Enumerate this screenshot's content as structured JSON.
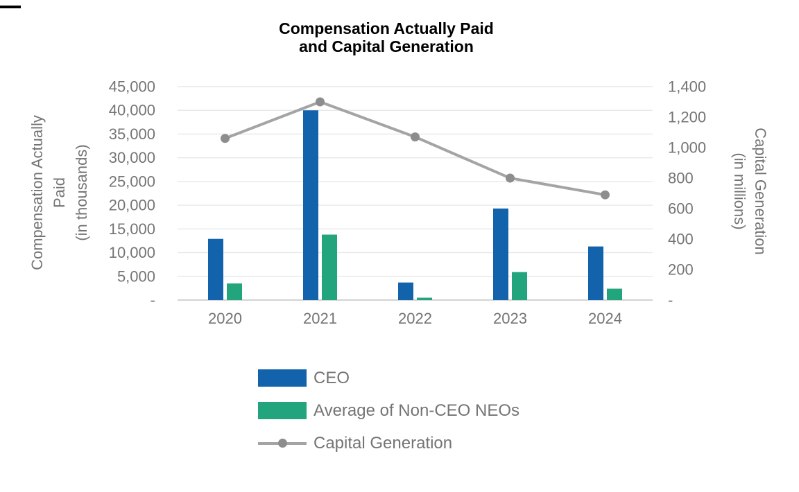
{
  "title": {
    "line1": "Compensation Actually Paid",
    "line2": "and Capital Generation"
  },
  "chart_data": {
    "type": "combo",
    "title": "Compensation Actually Paid and Capital Generation",
    "categories": [
      "2020",
      "2021",
      "2022",
      "2023",
      "2024"
    ],
    "series": [
      {
        "name": "CEO",
        "type": "bar",
        "axis": "left",
        "color": "#1262AC",
        "values": [
          12900,
          40000,
          3700,
          19300,
          11300
        ]
      },
      {
        "name": "Average of Non-CEO NEOs",
        "type": "bar",
        "axis": "left",
        "color": "#22A47D",
        "values": [
          3500,
          13800,
          500,
          5900,
          2400
        ]
      },
      {
        "name": "Capital Generation",
        "type": "line",
        "axis": "right",
        "color": "#A4A4A4",
        "marker_color": "#8D8D8D",
        "values": [
          1060,
          1300,
          1070,
          800,
          690
        ]
      }
    ],
    "left_axis": {
      "title_lines": [
        "Compensation Actually",
        "Paid",
        "(in thousands)"
      ],
      "min": 0,
      "max": 45000,
      "step": 5000,
      "tick_labels": [
        "45,000",
        "40,000",
        "35,000",
        "30,000",
        "25,000",
        "20,000",
        "15,000",
        "10,000",
        "5,000",
        "-"
      ]
    },
    "right_axis": {
      "title_lines": [
        "Capital Generation",
        "(in millions)"
      ],
      "min": 0,
      "max": 1400,
      "step": 200,
      "tick_labels": [
        "1,400",
        "1,200",
        "1,000",
        "800",
        "600",
        "400",
        "200",
        "-"
      ]
    },
    "grid": true,
    "grid_color": "#E9E9E9",
    "axis_line_color": "#D3D3D3",
    "text_color": "#747474",
    "legend_position": "bottom-left"
  },
  "legend": {
    "items": [
      {
        "label": "CEO",
        "marker": "rect",
        "color": "#1262AC"
      },
      {
        "label": "Average of Non-CEO NEOs",
        "marker": "rect",
        "color": "#22A47D"
      },
      {
        "label": "Capital Generation",
        "marker": "line-dot",
        "line_color": "#A4A4A4",
        "dot_color": "#8D8D8D"
      }
    ]
  }
}
